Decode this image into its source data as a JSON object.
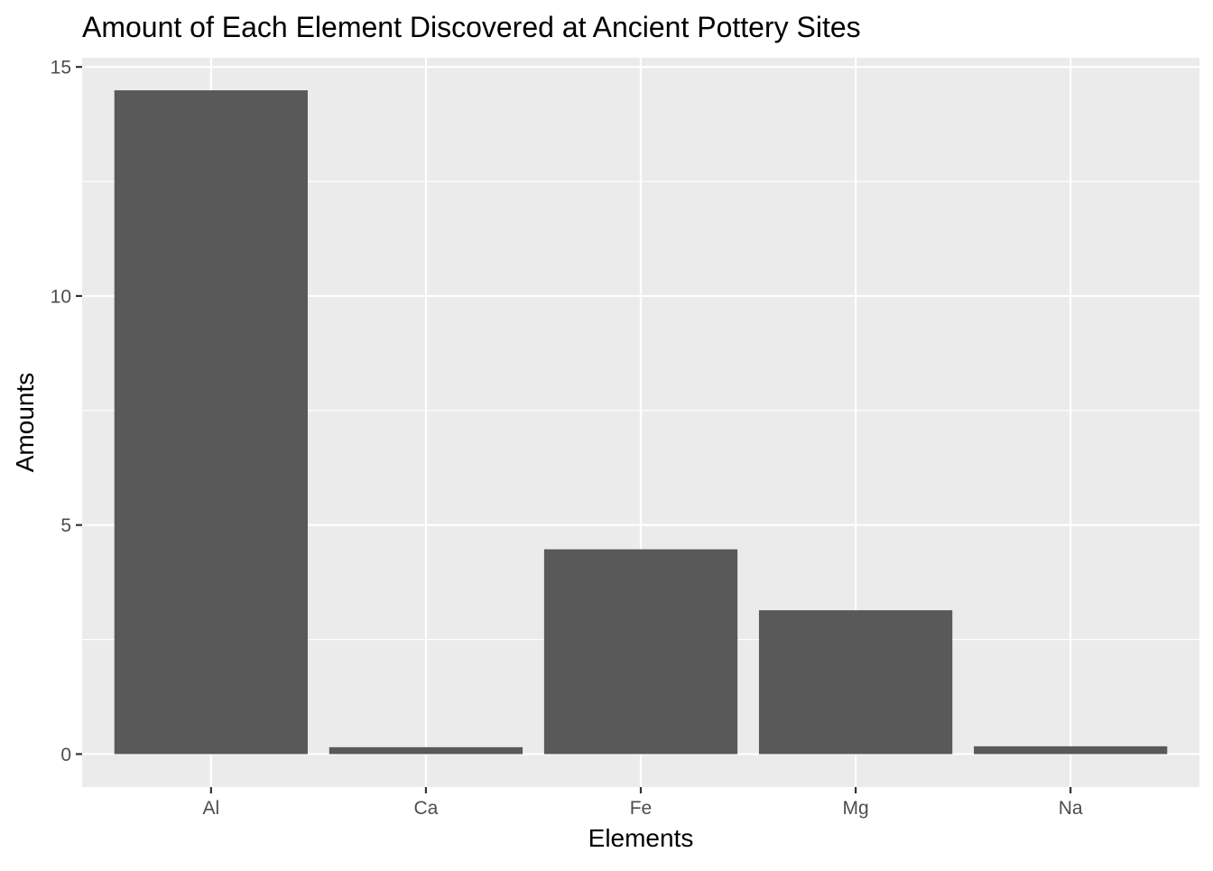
{
  "chart_data": {
    "type": "bar",
    "title": "Amount of Each Element Discovered at Ancient Pottery Sites",
    "xlabel": "Elements",
    "ylabel": "Amounts",
    "categories": [
      "Al",
      "Ca",
      "Fe",
      "Mg",
      "Na"
    ],
    "values": [
      14.49,
      0.15,
      4.47,
      3.14,
      0.17
    ],
    "ylim": [
      -0.72,
      15.2
    ],
    "yticks": [
      0,
      5,
      10,
      15
    ],
    "yticks_minor": [
      2.5,
      7.5,
      12.5
    ],
    "grid": true,
    "colors": {
      "panel_background": "#ebebeb",
      "grid_line": "#ffffff",
      "bar_fill": "#595959",
      "tick_color": "#333333",
      "tick_label": "#4d4d4d",
      "text": "#000000"
    }
  }
}
